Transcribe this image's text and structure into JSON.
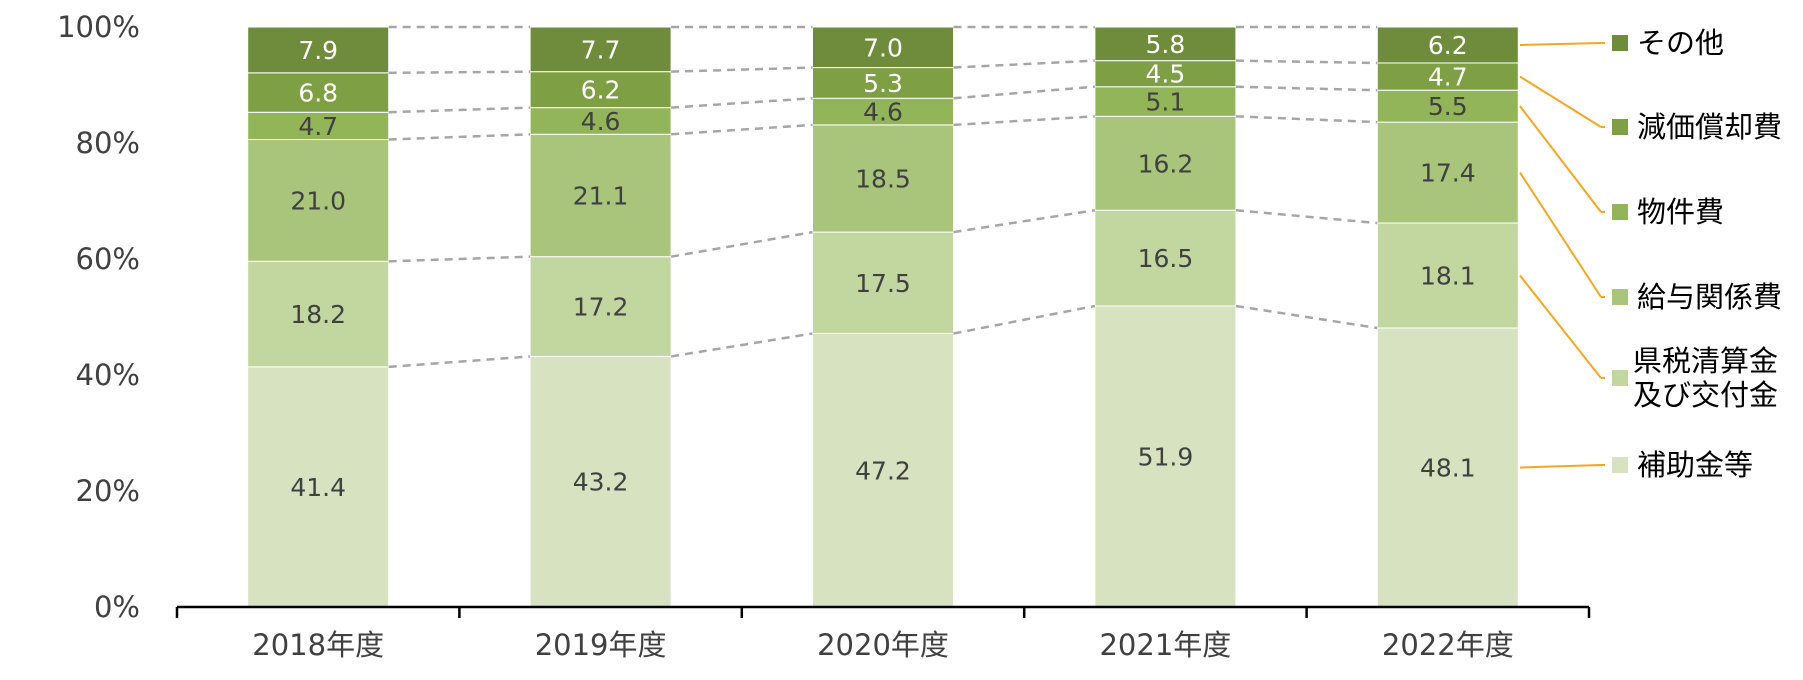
{
  "chart_data": {
    "type": "bar",
    "stacked": true,
    "percent_stacked": true,
    "title": "",
    "xlabel": "",
    "ylabel": "",
    "ylim": [
      0,
      100
    ],
    "y_ticks": [
      "0%",
      "20%",
      "40%",
      "60%",
      "80%",
      "100%"
    ],
    "categories": [
      "2018年度",
      "2019年度",
      "2020年度",
      "2021年度",
      "2022年度"
    ],
    "series": [
      {
        "name": "補助金等",
        "values": [
          41.4,
          43.2,
          47.2,
          51.9,
          48.1
        ],
        "color": "#d6e2c0",
        "label_color": "#404040"
      },
      {
        "name": "県税清算金\n及び交付金",
        "values": [
          18.2,
          17.2,
          17.5,
          16.5,
          18.1
        ],
        "color": "#c2d6a0",
        "label_color": "#404040"
      },
      {
        "name": "給与関係費",
        "values": [
          21.0,
          21.1,
          18.5,
          16.2,
          17.4
        ],
        "color": "#a9c57b",
        "label_color": "#404040"
      },
      {
        "name": "物件費",
        "values": [
          4.7,
          4.6,
          4.6,
          5.1,
          5.5
        ],
        "color": "#93b559",
        "label_color": "#404040"
      },
      {
        "name": "減価償却費",
        "values": [
          6.8,
          6.2,
          5.3,
          4.5,
          4.7
        ],
        "color": "#7f9f45",
        "label_color": "#ffffff"
      },
      {
        "name": "その他",
        "values": [
          7.9,
          7.7,
          7.0,
          5.8,
          6.2
        ],
        "color": "#6f8c3c",
        "label_color": "#ffffff"
      }
    ],
    "legend_position": "right",
    "connector_lines": "dashed",
    "grid": false,
    "colors": {
      "axis": "#000000",
      "text": "#404040",
      "connector": "#a6a6a6",
      "leader": "#f5a623"
    }
  }
}
